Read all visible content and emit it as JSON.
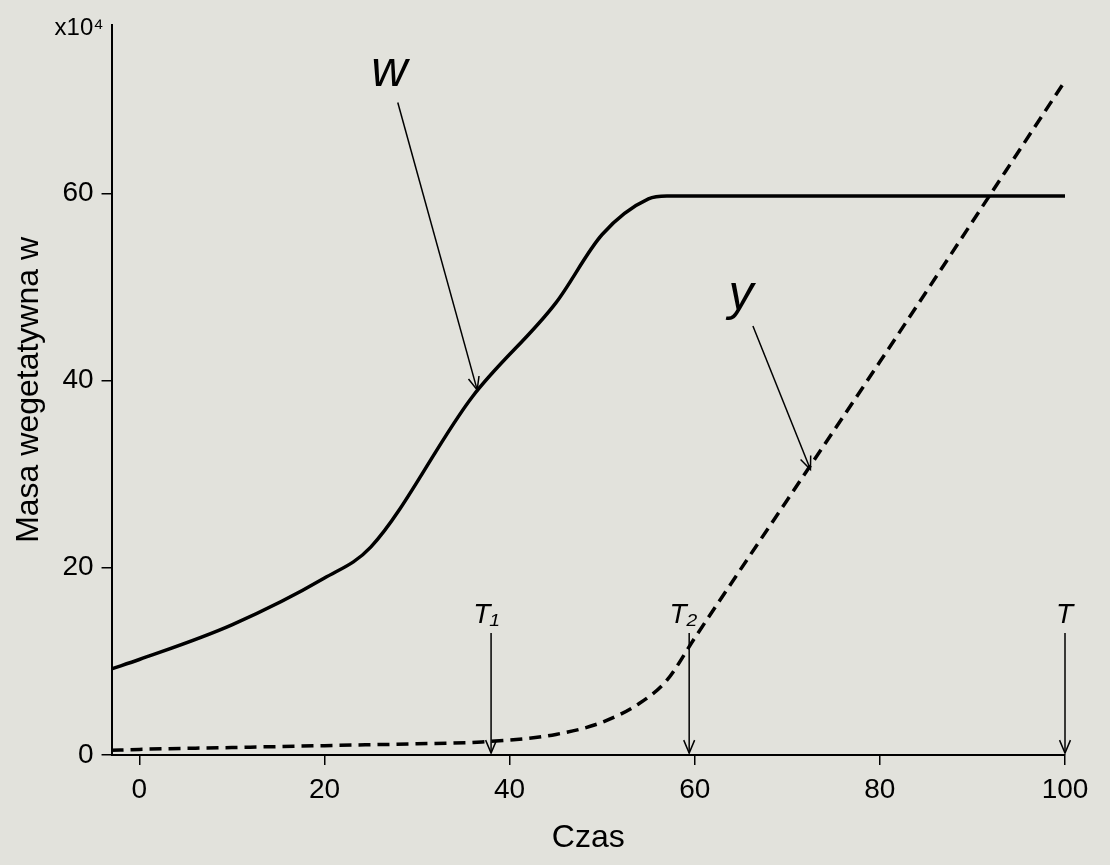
{
  "chart_data": {
    "type": "line",
    "xlabel": "Czas",
    "ylabel": "Masa wegetatywna w",
    "y_multiplier": "x10⁴",
    "xlim": [
      -3,
      100
    ],
    "xticks": [
      0,
      20,
      40,
      60,
      80,
      100
    ],
    "ylim": [
      0,
      78
    ],
    "yticks": [
      0,
      20,
      40,
      60
    ],
    "grid": false,
    "series": [
      {
        "name": "w",
        "color": "#000000",
        "line_style": "solid",
        "x": [
          -3,
          0,
          10,
          20,
          25,
          36,
          45,
          50,
          55,
          57,
          70,
          85,
          100
        ],
        "values": [
          9.2,
          10.2,
          13.9,
          18.9,
          22.2,
          38.3,
          48.3,
          55.6,
          59.4,
          59.7,
          59.7,
          59.7,
          59.7
        ],
        "label_at": [
          27,
          73
        ],
        "arrow_to": [
          36.5,
          39
        ]
      },
      {
        "name": "y",
        "color": "#000000",
        "line_style": "dashed",
        "x": [
          -3,
          0,
          10,
          20,
          30,
          37,
          45,
          50,
          54,
          57,
          60,
          80,
          100
        ],
        "values": [
          0.5,
          0.6,
          0.8,
          1.0,
          1.2,
          1.4,
          2.2,
          3.5,
          5.5,
          8,
          12.5,
          42,
          72
        ],
        "label_at": [
          65,
          49
        ],
        "arrow_to": [
          72.5,
          30.5
        ]
      }
    ],
    "markers": [
      {
        "text": "T₁",
        "x": 38
      },
      {
        "text": "T₂",
        "x": 59.4
      },
      {
        "text": "T",
        "x": 100
      }
    ]
  }
}
